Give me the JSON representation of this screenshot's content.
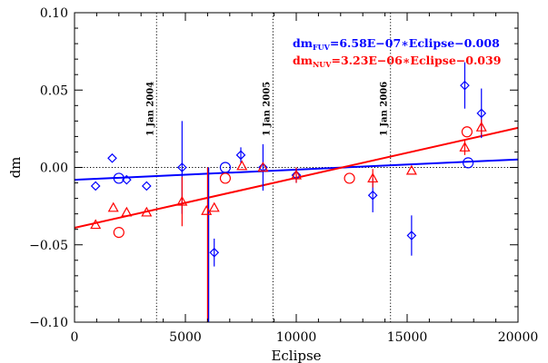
{
  "chart_data": {
    "type": "scatter",
    "xlabel": "Eclipse",
    "ylabel": "dm",
    "xlim": [
      0,
      20000
    ],
    "ylim": [
      -0.1,
      0.1
    ],
    "x_ticks": [
      0,
      5000,
      10000,
      15000,
      20000
    ],
    "x_tick_labels": [
      "0",
      "5000",
      "10000",
      "15000",
      "20000"
    ],
    "y_ticks": [
      -0.1,
      -0.05,
      0.0,
      0.05,
      0.1
    ],
    "y_tick_labels": [
      "−0.10",
      "−0.05",
      "0.00",
      "0.05",
      "0.10"
    ],
    "grid": false,
    "reference_lines": [
      {
        "orientation": "vertical",
        "x": 3700,
        "label": "1 Jan 2004"
      },
      {
        "orientation": "vertical",
        "x": 8950,
        "label": "1 Jan 2005"
      },
      {
        "orientation": "vertical",
        "x": 14250,
        "label": "1 Jan 2006"
      },
      {
        "orientation": "horizontal",
        "y": 0.0,
        "label": ""
      }
    ],
    "fit_labels": [
      {
        "prefix": "dm",
        "subscript": "FUV",
        "equation": "=6.58E−07∗Eclipse−0.008",
        "color": "#0000ff"
      },
      {
        "prefix": "dm",
        "subscript": "NUV",
        "equation": "=3.23E−06∗Eclipse−0.039",
        "color": "#ff0000"
      }
    ],
    "series": [
      {
        "name": "FUV",
        "color": "#0000ff",
        "fit": {
          "slope": 6.58e-07,
          "intercept": -0.008
        },
        "diamonds": [
          {
            "x": 950,
            "y": -0.012
          },
          {
            "x": 1700,
            "y": 0.006
          },
          {
            "x": 2350,
            "y": -0.008
          },
          {
            "x": 3250,
            "y": -0.012
          },
          {
            "x": 4850,
            "y": 0.0,
            "err": 0.03
          },
          {
            "x": 6300,
            "y": -0.055,
            "err": 0.009
          },
          {
            "x": 7500,
            "y": 0.008,
            "err": 0.005
          },
          {
            "x": 8500,
            "y": 0.0,
            "err": 0.015
          },
          {
            "x": 10000,
            "y": -0.005,
            "err": 0.005
          },
          {
            "x": 13450,
            "y": -0.018,
            "err": 0.011
          },
          {
            "x": 15200,
            "y": -0.044,
            "err": 0.013
          },
          {
            "x": 17600,
            "y": 0.053,
            "err": 0.015
          },
          {
            "x": 18350,
            "y": 0.035,
            "err": 0.016
          }
        ],
        "circles": [
          {
            "x": 2000,
            "y": -0.007
          },
          {
            "x": 6800,
            "y": 0.0
          },
          {
            "x": 17750,
            "y": 0.003
          }
        ],
        "vertical_line": {
          "x": 6050,
          "y_from": -0.1,
          "y_to": 0.0
        }
      },
      {
        "name": "NUV",
        "color": "#ff0000",
        "fit": {
          "slope": 3.23e-06,
          "intercept": -0.039
        },
        "triangles": [
          {
            "x": 950,
            "y": -0.037
          },
          {
            "x": 1750,
            "y": -0.026
          },
          {
            "x": 2350,
            "y": -0.029
          },
          {
            "x": 3250,
            "y": -0.029
          },
          {
            "x": 4850,
            "y": -0.022,
            "err": 0.016
          },
          {
            "x": 5950,
            "y": -0.028
          },
          {
            "x": 6300,
            "y": -0.026
          },
          {
            "x": 7550,
            "y": 0.001
          },
          {
            "x": 8500,
            "y": 0.0
          },
          {
            "x": 10000,
            "y": -0.005,
            "err": 0.005
          },
          {
            "x": 13450,
            "y": -0.007,
            "err": 0.006
          },
          {
            "x": 15200,
            "y": -0.002
          },
          {
            "x": 17600,
            "y": 0.013,
            "err": 0.005
          },
          {
            "x": 18350,
            "y": 0.026,
            "err": 0.005
          }
        ],
        "circles": [
          {
            "x": 2000,
            "y": -0.042
          },
          {
            "x": 6800,
            "y": -0.007
          },
          {
            "x": 12400,
            "y": -0.007
          },
          {
            "x": 17700,
            "y": 0.023
          }
        ],
        "vertical_line": {
          "x": 6000,
          "y_from": -0.1,
          "y_to": 0.0
        }
      }
    ]
  }
}
